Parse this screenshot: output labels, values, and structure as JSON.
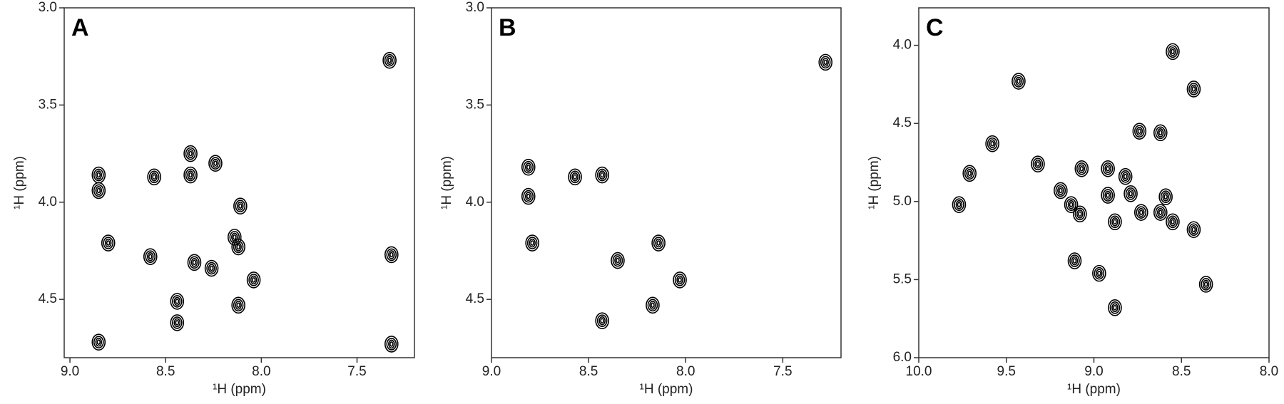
{
  "chart_data": [
    {
      "type": "scatter",
      "title": "A",
      "x_label": "¹H (ppm)",
      "y_label": "¹H (ppm)",
      "color": "#000000",
      "x": [
        8.85,
        8.85,
        8.8,
        8.85,
        8.56,
        8.37,
        8.37,
        8.24,
        8.58,
        8.35,
        8.26,
        8.44,
        8.44,
        8.11,
        8.14,
        8.12,
        8.12,
        8.04,
        7.33,
        7.32,
        7.32
      ],
      "y": [
        3.86,
        3.94,
        4.21,
        4.72,
        3.87,
        3.75,
        3.86,
        3.8,
        4.28,
        4.31,
        4.34,
        4.51,
        4.62,
        4.02,
        4.18,
        4.23,
        4.53,
        4.4,
        3.27,
        4.27,
        4.73
      ],
      "xlim": [
        9.03,
        7.2
      ],
      "ylim": [
        3.0,
        4.8
      ],
      "xticks": [
        {
          "value": 9.0,
          "label": "9.0"
        },
        {
          "value": 8.5,
          "label": "8.5"
        },
        {
          "value": 8.0,
          "label": "8.0"
        },
        {
          "value": 7.5,
          "label": "7.5"
        }
      ],
      "yticks": [
        {
          "value": 3.0,
          "label": "3.0"
        },
        {
          "value": 3.5,
          "label": "3.5"
        },
        {
          "value": 4.0,
          "label": "4.0"
        },
        {
          "value": 4.5,
          "label": "4.5"
        }
      ]
    },
    {
      "type": "scatter",
      "title": "B",
      "x_label": "¹H (ppm)",
      "y_label": "¹H (ppm)",
      "color": "#000000",
      "x": [
        8.79,
        8.81,
        8.81,
        8.57,
        8.43,
        8.43,
        8.35,
        8.14,
        8.17,
        8.03,
        7.28
      ],
      "y": [
        4.21,
        3.82,
        3.97,
        3.87,
        3.86,
        4.61,
        4.3,
        4.21,
        4.53,
        4.4,
        3.28
      ],
      "xlim": [
        9.0,
        7.2
      ],
      "ylim": [
        3.0,
        4.8
      ],
      "xticks": [
        {
          "value": 9.0,
          "label": "9.0"
        },
        {
          "value": 8.5,
          "label": "8.5"
        },
        {
          "value": 8.0,
          "label": "8.0"
        },
        {
          "value": 7.5,
          "label": "7.5"
        }
      ],
      "yticks": [
        {
          "value": 3.0,
          "label": "3.0"
        },
        {
          "value": 3.5,
          "label": "3.5"
        },
        {
          "value": 4.0,
          "label": "4.0"
        },
        {
          "value": 4.5,
          "label": "4.5"
        }
      ]
    },
    {
      "type": "scatter",
      "title": "C",
      "x_label": "¹H (ppm)",
      "y_label": "¹H (ppm)",
      "color": "#000000",
      "x": [
        9.77,
        9.71,
        9.58,
        9.43,
        9.32,
        9.19,
        9.13,
        9.08,
        9.07,
        9.11,
        8.97,
        8.88,
        8.92,
        8.92,
        8.88,
        8.82,
        8.79,
        8.74,
        8.73,
        8.62,
        8.59,
        8.62,
        8.55,
        8.55,
        8.43,
        8.43,
        8.36
      ],
      "y": [
        5.02,
        4.82,
        4.63,
        4.23,
        4.76,
        4.93,
        5.02,
        5.08,
        4.79,
        5.38,
        5.46,
        5.68,
        4.79,
        4.96,
        5.13,
        4.84,
        4.95,
        4.55,
        5.07,
        5.07,
        4.97,
        4.56,
        4.04,
        5.13,
        5.18,
        4.28,
        5.53
      ],
      "xlim": [
        10.0,
        8.0
      ],
      "ylim": [
        3.76,
        6.0
      ],
      "xticks": [
        {
          "value": 10.0,
          "label": "10.0"
        },
        {
          "value": 9.5,
          "label": "9.5"
        },
        {
          "value": 9.0,
          "label": "9.0"
        },
        {
          "value": 8.5,
          "label": "8.5"
        },
        {
          "value": 8.0,
          "label": "8.0"
        }
      ],
      "yticks": [
        {
          "value": 4.0,
          "label": "4.0"
        },
        {
          "value": 4.5,
          "label": "4.5"
        },
        {
          "value": 5.0,
          "label": "5.0"
        },
        {
          "value": 5.5,
          "label": "5.5"
        },
        {
          "value": 6.0,
          "label": "6.0"
        }
      ]
    }
  ]
}
